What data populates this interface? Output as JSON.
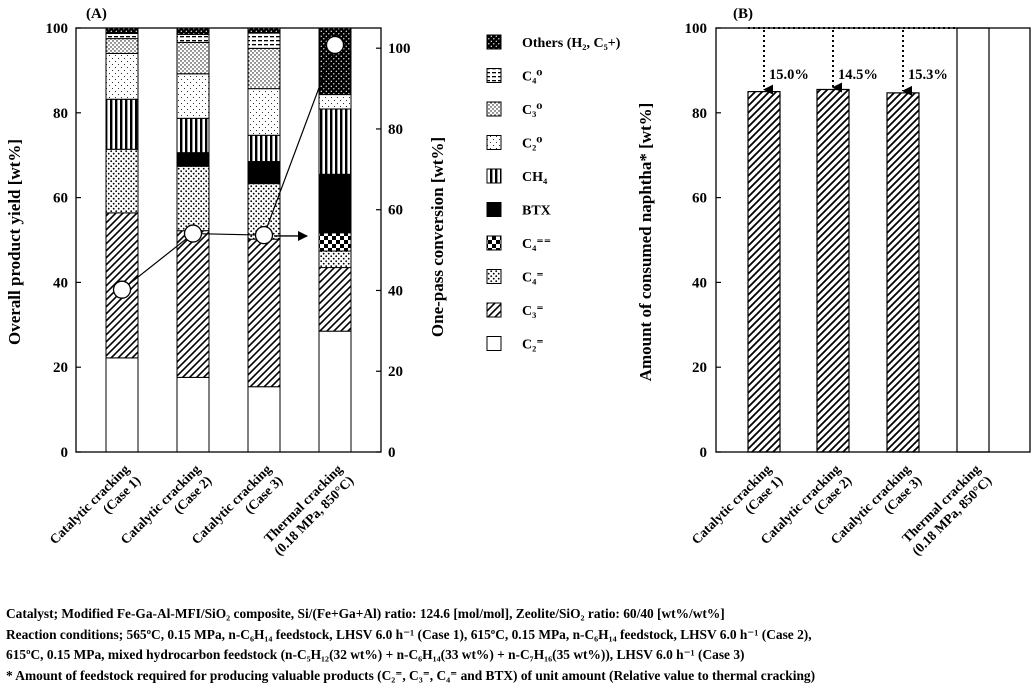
{
  "panel_a": {
    "label": "(A)",
    "y_left_label": "Overall product yield [wt%]",
    "y_right_label": "One-pass conversion [wt%]",
    "y_ticks": [
      "0",
      "20",
      "40",
      "60",
      "80",
      "100"
    ],
    "y_right_ticks": [
      "0",
      "20",
      "40",
      "60",
      "80",
      "100"
    ],
    "categories": [
      [
        "Catalytic cracking",
        "(Case 1)"
      ],
      [
        "Catalytic cracking",
        "(Case 2)"
      ],
      [
        "Catalytic cracking",
        "(Case 3)"
      ],
      [
        "Thermal cracking",
        "(0.18 MPa, 850°C)"
      ]
    ],
    "legend": [
      {
        "label": "Others (H₂, C₅+)"
      },
      {
        "label": "C₄⁰"
      },
      {
        "label": "C₃⁰"
      },
      {
        "label": "C₂⁰"
      },
      {
        "label": "CH₄"
      },
      {
        "label": "BTX"
      },
      {
        "label": "C₄⁼⁼"
      },
      {
        "label": "C₄⁼"
      },
      {
        "label": "C₃⁼"
      },
      {
        "label": "C₂⁼"
      }
    ]
  },
  "panel_b": {
    "label": "(B)",
    "y_label": "Amount of consumed naphtha* [wt%]",
    "y_ticks": [
      "0",
      "20",
      "40",
      "60",
      "80",
      "100"
    ],
    "categories": [
      [
        "Catalytic cracking",
        "(Case 1)"
      ],
      [
        "Catalytic cracking",
        "(Case 2)"
      ],
      [
        "Catalytic cracking",
        "(Case 3)"
      ],
      [
        "Thermal cracking",
        "(0.18 MPa, 850°C)"
      ]
    ],
    "reduction_labels": [
      "15.0%",
      "14.5%",
      "15.3%"
    ]
  },
  "caption": {
    "line1": "Catalyst; Modified Fe-Ga-Al-MFI/SiO₂ composite, Si/(Fe+Ga+Al) ratio: 124.6 [mol/mol], Zeolite/SiO₂ ratio: 60/40 [wt%/wt%]",
    "line2": "Reaction conditions; 565ºC, 0.15 MPa, n-C₆H₁₄ feedstock, LHSV 6.0 h⁻¹ (Case 1), 615ºC, 0.15 MPa, n-C₆H₁₄ feedstock, LHSV 6.0 h⁻¹ (Case 2),",
    "line3": "615ºC, 0.15 MPa, mixed hydrocarbon feedstock (n-C₅H₁₂(32 wt%) + n-C₆H₁₄(33 wt%) +  n-C₇H₁₆(35 wt%)), LHSV 6.0 h⁻¹ (Case 3)",
    "line4": "* Amount of feedstock required for producing valuable products (C₂⁼, C₃⁼, C₄⁼ and BTX) of unit amount (Relative value to thermal cracking)"
  },
  "chart_data": [
    {
      "type": "bar",
      "stacked": true,
      "title": "",
      "ylabel": "Overall product yield [wt%]",
      "ylim": [
        0,
        100
      ],
      "y2label": "One-pass conversion [wt%]",
      "y2lim": [
        0,
        105
      ],
      "categories": [
        "Catalytic cracking (Case 1)",
        "Catalytic cracking (Case 2)",
        "Catalytic cracking (Case 3)",
        "Thermal cracking (0.18 MPa, 850°C)"
      ],
      "series": [
        {
          "name": "C₂⁼",
          "values": [
            22.2,
            17.6,
            15.4,
            28.5
          ]
        },
        {
          "name": "C₃⁼",
          "values": [
            34.2,
            34.6,
            34.8,
            15.0
          ]
        },
        {
          "name": "C₄⁼",
          "values": [
            15.0,
            15.2,
            13.1,
            3.9
          ]
        },
        {
          "name": "C₄⁼⁼",
          "values": [
            0.0,
            0.0,
            0.0,
            4.3
          ]
        },
        {
          "name": "BTX",
          "values": [
            0.0,
            3.2,
            5.2,
            13.8
          ]
        },
        {
          "name": "CH₄",
          "values": [
            11.8,
            8.1,
            6.2,
            15.4
          ]
        },
        {
          "name": "C₂⁰",
          "values": [
            10.8,
            10.5,
            11.0,
            3.4
          ]
        },
        {
          "name": "C₃⁰",
          "values": [
            3.5,
            7.4,
            9.5,
            0.0
          ]
        },
        {
          "name": "C₄⁰",
          "values": [
            1.2,
            1.9,
            3.6,
            0.0
          ]
        },
        {
          "name": "Others (H₂, C₅+)",
          "values": [
            1.3,
            1.5,
            1.2,
            15.7
          ]
        }
      ],
      "line_series": {
        "axis": "right",
        "values": [
          40.2,
          54.1,
          53.7,
          100.8
        ],
        "arrow_end": 53.5
      }
    },
    {
      "type": "bar",
      "title": "",
      "ylabel": "Amount of consumed naphtha* [wt%]",
      "ylim": [
        0,
        100
      ],
      "categories": [
        "Catalytic cracking (Case 1)",
        "Catalytic cracking (Case 2)",
        "Catalytic cracking (Case 3)",
        "Thermal cracking (0.18 MPa, 850°C)"
      ],
      "values": [
        85.0,
        85.5,
        84.7,
        100.0
      ],
      "annotations": [
        "15.0%",
        "14.5%",
        "15.3%"
      ]
    }
  ]
}
